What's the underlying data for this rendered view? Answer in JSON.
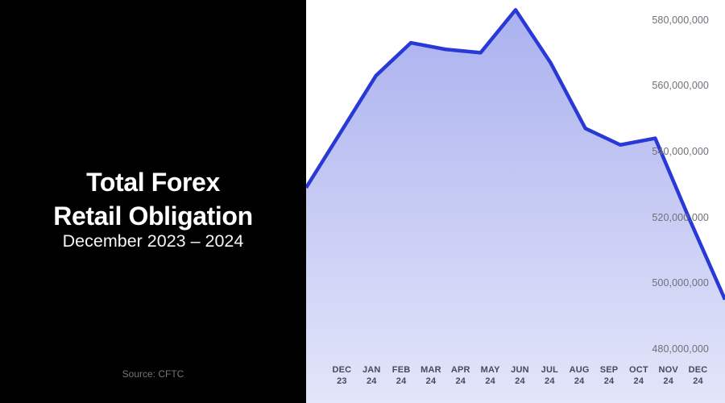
{
  "panel": {
    "title_line1": "Total Forex",
    "title_line2": "Retail Obligation",
    "subtitle": "December 2023 – 2024",
    "source": "Source: CFTC"
  },
  "chart_data": {
    "type": "area",
    "title": "Total Forex Retail Obligation",
    "subtitle": "December 2023 – 2024",
    "source": "CFTC",
    "categories": [
      "Dec 2023",
      "Jan 2024",
      "Feb 2024",
      "Mar 2024",
      "Apr 2024",
      "May 2024",
      "Jun 2024",
      "Jul 2024",
      "Aug 2024",
      "Sep 2024",
      "Oct 2024",
      "Nov 2024",
      "Dec 2024"
    ],
    "x_tick_labels": [
      {
        "line1": "DEC",
        "line2": "23"
      },
      {
        "line1": "JAN",
        "line2": "24"
      },
      {
        "line1": "FEB",
        "line2": "24"
      },
      {
        "line1": "MAR",
        "line2": "24"
      },
      {
        "line1": "APR",
        "line2": "24"
      },
      {
        "line1": "MAY",
        "line2": "24"
      },
      {
        "line1": "JUN",
        "line2": "24"
      },
      {
        "line1": "JUL",
        "line2": "24"
      },
      {
        "line1": "AUG",
        "line2": "24"
      },
      {
        "line1": "SEP",
        "line2": "24"
      },
      {
        "line1": "OCT",
        "line2": "24"
      },
      {
        "line1": "NOV",
        "line2": "24"
      },
      {
        "line1": "DEC",
        "line2": "24"
      }
    ],
    "series": [
      {
        "name": "Total Forex Retail Obligation",
        "values": [
          529000000,
          546000000,
          563000000,
          573000000,
          571000000,
          570000000,
          583000000,
          567000000,
          547000000,
          542000000,
          544000000,
          519000000,
          495000000
        ]
      }
    ],
    "y_ticks": [
      {
        "value": 580000000,
        "label": "580,000,000"
      },
      {
        "value": 560000000,
        "label": "560,000,000"
      },
      {
        "value": 540000000,
        "label": "540,000,000"
      },
      {
        "value": 520000000,
        "label": "520,000,000"
      },
      {
        "value": 500000000,
        "label": "500,000,000"
      },
      {
        "value": 480000000,
        "label": "480,000,000"
      }
    ],
    "ylim_visible": [
      464000000,
      586000000
    ],
    "grid": false,
    "legend": "none",
    "colors": {
      "line": "#2839d5",
      "fill": "#2839d5",
      "fill_opacity_top": 0.4,
      "fill_opacity_bottom": 0.13,
      "panel_bg": "#000000",
      "chart_bg": "#ffffff",
      "y_label": "#6f7078",
      "x_label": "#454a5c",
      "title": "#ffffff",
      "source": "#757575"
    }
  }
}
